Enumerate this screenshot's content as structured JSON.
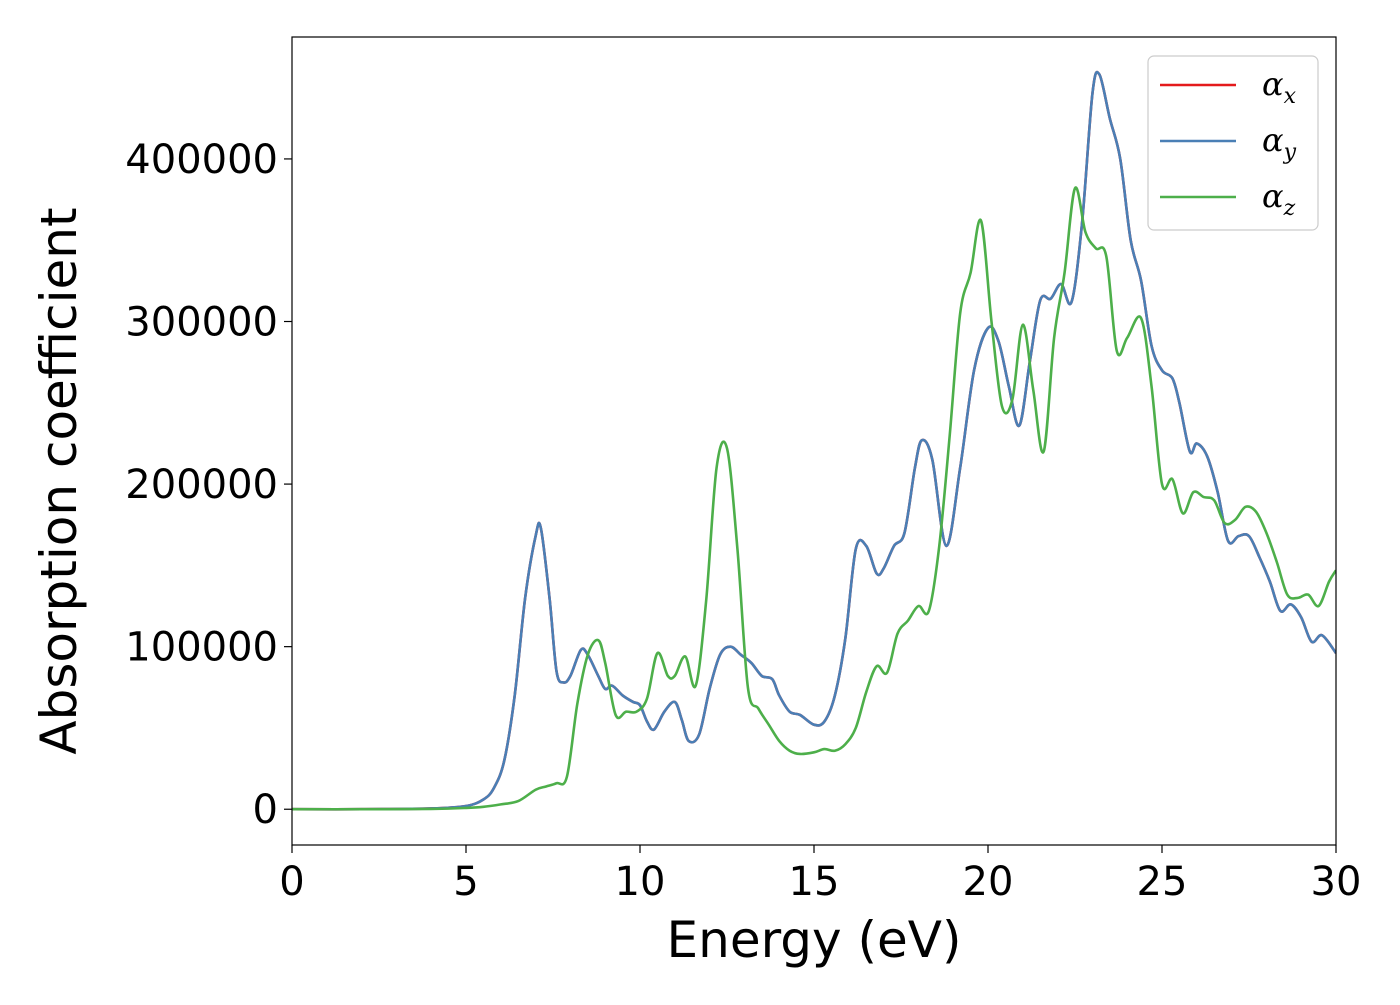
{
  "chart_data": {
    "type": "line",
    "xlabel": "Energy (eV)",
    "ylabel": "Absorption coefficient",
    "xlim": [
      0,
      30
    ],
    "ylim": [
      -22000,
      475000
    ],
    "grid": false,
    "legend_placement": "top-right",
    "x_ticks": [
      0,
      5,
      10,
      15,
      20,
      25,
      30
    ],
    "x_tick_labels": [
      "0",
      "5",
      "10",
      "15",
      "20",
      "25",
      "30"
    ],
    "y_ticks": [
      0,
      100000,
      200000,
      300000,
      400000
    ],
    "y_tick_labels": [
      "0",
      "100000",
      "200000",
      "300000",
      "400000"
    ],
    "series": [
      {
        "name": "αx",
        "name_base": "α",
        "name_sub": "x",
        "color": "#e41a1c",
        "x": [
          0,
          2,
          4,
          5,
          5.5,
          5.8,
          6.1,
          6.4,
          6.7,
          7.0,
          7.15,
          7.4,
          7.6,
          7.8,
          8.0,
          8.3,
          8.5,
          8.8,
          9.0,
          9.2,
          9.5,
          9.8,
          10.0,
          10.2,
          10.4,
          10.7,
          11.0,
          11.2,
          11.4,
          11.7,
          12.0,
          12.3,
          12.6,
          12.9,
          13.2,
          13.5,
          13.8,
          14.0,
          14.3,
          14.6,
          15.0,
          15.3,
          15.6,
          15.9,
          16.2,
          16.5,
          16.8,
          17.0,
          17.3,
          17.6,
          17.9,
          18.1,
          18.4,
          18.8,
          19.2,
          19.6,
          20.0,
          20.3,
          20.6,
          20.9,
          21.2,
          21.5,
          21.8,
          22.1,
          22.4,
          22.7,
          23.0,
          23.2,
          23.5,
          23.8,
          24.1,
          24.4,
          24.7,
          25.0,
          25.3,
          25.5,
          25.8,
          26.0,
          26.3,
          26.6,
          26.9,
          27.2,
          27.5,
          27.8,
          28.1,
          28.4,
          28.7,
          29.0,
          29.3,
          29.6,
          30.0
        ],
        "y": [
          0,
          0,
          500,
          2000,
          6000,
          13000,
          30000,
          70000,
          130000,
          168000,
          173000,
          130000,
          85000,
          78000,
          82000,
          98000,
          95000,
          82000,
          74000,
          76000,
          70000,
          66000,
          64000,
          54000,
          49000,
          60000,
          66000,
          55000,
          42000,
          46000,
          74000,
          95000,
          100000,
          95000,
          90000,
          82000,
          80000,
          70000,
          60000,
          58000,
          52000,
          54000,
          70000,
          105000,
          160000,
          162000,
          145000,
          148000,
          162000,
          170000,
          210000,
          227000,
          215000,
          162000,
          210000,
          270000,
          296000,
          288000,
          260000,
          236000,
          275000,
          313000,
          314000,
          323000,
          312000,
          360000,
          440000,
          452000,
          425000,
          400000,
          350000,
          325000,
          285000,
          270000,
          265000,
          250000,
          220000,
          225000,
          217000,
          195000,
          165000,
          168000,
          168000,
          155000,
          140000,
          122000,
          126000,
          118000,
          103000,
          107000,
          96000
        ]
      },
      {
        "name": "αy",
        "name_base": "α",
        "name_sub": "y",
        "color": "#4a7fb5",
        "x": [
          0,
          2,
          4,
          5,
          5.5,
          5.8,
          6.1,
          6.4,
          6.7,
          7.0,
          7.15,
          7.4,
          7.6,
          7.8,
          8.0,
          8.3,
          8.5,
          8.8,
          9.0,
          9.2,
          9.5,
          9.8,
          10.0,
          10.2,
          10.4,
          10.7,
          11.0,
          11.2,
          11.4,
          11.7,
          12.0,
          12.3,
          12.6,
          12.9,
          13.2,
          13.5,
          13.8,
          14.0,
          14.3,
          14.6,
          15.0,
          15.3,
          15.6,
          15.9,
          16.2,
          16.5,
          16.8,
          17.0,
          17.3,
          17.6,
          17.9,
          18.1,
          18.4,
          18.8,
          19.2,
          19.6,
          20.0,
          20.3,
          20.6,
          20.9,
          21.2,
          21.5,
          21.8,
          22.1,
          22.4,
          22.7,
          23.0,
          23.2,
          23.5,
          23.8,
          24.1,
          24.4,
          24.7,
          25.0,
          25.3,
          25.5,
          25.8,
          26.0,
          26.3,
          26.6,
          26.9,
          27.2,
          27.5,
          27.8,
          28.1,
          28.4,
          28.7,
          29.0,
          29.3,
          29.6,
          30.0
        ],
        "y": [
          0,
          0,
          500,
          2000,
          6000,
          13000,
          30000,
          70000,
          130000,
          168000,
          173000,
          130000,
          85000,
          78000,
          82000,
          98000,
          95000,
          82000,
          74000,
          76000,
          70000,
          66000,
          64000,
          54000,
          49000,
          60000,
          66000,
          55000,
          42000,
          46000,
          74000,
          95000,
          100000,
          95000,
          90000,
          82000,
          80000,
          70000,
          60000,
          58000,
          52000,
          54000,
          70000,
          105000,
          160000,
          162000,
          145000,
          148000,
          162000,
          170000,
          210000,
          227000,
          215000,
          162000,
          210000,
          270000,
          296000,
          288000,
          260000,
          236000,
          275000,
          313000,
          314000,
          323000,
          312000,
          360000,
          440000,
          452000,
          425000,
          400000,
          350000,
          325000,
          285000,
          270000,
          265000,
          250000,
          220000,
          225000,
          217000,
          195000,
          165000,
          168000,
          168000,
          155000,
          140000,
          122000,
          126000,
          118000,
          103000,
          107000,
          96000
        ]
      },
      {
        "name": "αz",
        "name_base": "α",
        "name_sub": "z",
        "color": "#4daf4a",
        "x": [
          0,
          2,
          4,
          5,
          5.5,
          6.0,
          6.5,
          7.0,
          7.3,
          7.6,
          7.9,
          8.2,
          8.5,
          8.8,
          9.0,
          9.3,
          9.6,
          9.9,
          10.2,
          10.5,
          10.8,
          11.0,
          11.3,
          11.6,
          11.9,
          12.2,
          12.5,
          12.8,
          13.1,
          13.4,
          13.7,
          14.0,
          14.3,
          14.6,
          15.0,
          15.3,
          15.6,
          15.9,
          16.2,
          16.5,
          16.8,
          17.1,
          17.4,
          17.7,
          18.0,
          18.3,
          18.6,
          18.9,
          19.2,
          19.5,
          19.8,
          20.1,
          20.4,
          20.7,
          21.0,
          21.3,
          21.6,
          21.9,
          22.2,
          22.5,
          22.8,
          23.1,
          23.4,
          23.7,
          24.0,
          24.4,
          24.7,
          25.0,
          25.3,
          25.6,
          25.9,
          26.2,
          26.5,
          26.8,
          27.1,
          27.4,
          27.7,
          28.0,
          28.3,
          28.6,
          28.9,
          29.2,
          29.5,
          29.8,
          30.0
        ],
        "y": [
          0,
          0,
          200,
          800,
          1500,
          3000,
          5000,
          12000,
          14000,
          16000,
          20000,
          65000,
          95000,
          104000,
          90000,
          58000,
          60000,
          60000,
          68000,
          96000,
          82000,
          82000,
          94000,
          76000,
          128000,
          210000,
          222000,
          160000,
          75000,
          62000,
          52000,
          42000,
          36000,
          34000,
          35000,
          37000,
          36000,
          40000,
          50000,
          72000,
          88000,
          84000,
          108000,
          116000,
          125000,
          122000,
          162000,
          230000,
          305000,
          330000,
          362000,
          300000,
          248000,
          252000,
          298000,
          258000,
          220000,
          290000,
          330000,
          382000,
          355000,
          345000,
          340000,
          282000,
          290000,
          302000,
          260000,
          200000,
          203000,
          182000,
          195000,
          192000,
          190000,
          176000,
          178000,
          186000,
          183000,
          170000,
          152000,
          132000,
          130000,
          132000,
          125000,
          140000,
          147000
        ]
      }
    ]
  }
}
